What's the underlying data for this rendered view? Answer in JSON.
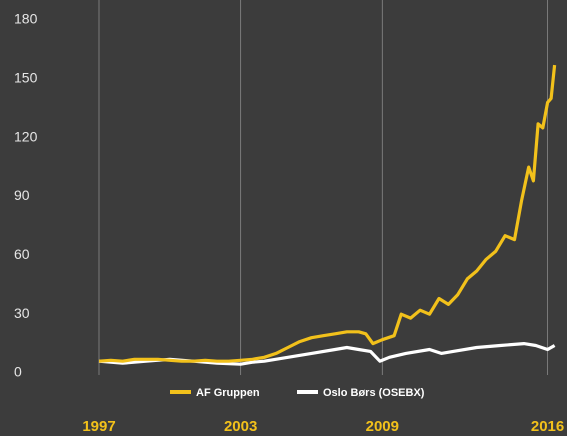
{
  "chart_data": {
    "type": "line",
    "xlim": [
      1997,
      2016.4
    ],
    "xticks": [
      1997,
      2003,
      2009,
      2016
    ],
    "ylim": [
      0,
      180
    ],
    "yticks": [
      0,
      30,
      60,
      90,
      120,
      150,
      180
    ],
    "grid": "x",
    "legend": "bottom",
    "series": [
      {
        "name": "AF Gruppen",
        "color": "#f2c11b",
        "x": [
          1997,
          1997.5,
          1998,
          1998.5,
          1999,
          1999.5,
          2000,
          2000.5,
          2001,
          2001.5,
          2002,
          2002.5,
          2003,
          2003.5,
          2004,
          2004.5,
          2005,
          2005.5,
          2006,
          2006.5,
          2007,
          2007.5,
          2008,
          2008.3,
          2008.6,
          2009,
          2009.5,
          2009.8,
          2010.2,
          2010.6,
          2011,
          2011.4,
          2011.8,
          2012.2,
          2012.6,
          2013,
          2013.4,
          2013.8,
          2014.2,
          2014.6,
          2014.9,
          2015.2,
          2015.4,
          2015.6,
          2015.8,
          2016,
          2016.15,
          2016.3
        ],
        "values": [
          6,
          6.5,
          6,
          7,
          7,
          7,
          6.5,
          6,
          6,
          6.5,
          6,
          6,
          6.5,
          7,
          8,
          10,
          13,
          16,
          18,
          19,
          20,
          21,
          21,
          20,
          15,
          17,
          19,
          30,
          28,
          32,
          30,
          38,
          35,
          40,
          48,
          52,
          58,
          62,
          70,
          68,
          88,
          105,
          98,
          127,
          125,
          138,
          140,
          157
        ]
      },
      {
        "name": "Oslo Børs (OSEBX)",
        "color": "#ffffff",
        "x": [
          1997,
          1998,
          1999,
          2000,
          2001,
          2002,
          2003,
          2003.5,
          2004,
          2005,
          2006,
          2007,
          2007.5,
          2008,
          2008.5,
          2008.9,
          2009.3,
          2010,
          2011,
          2011.5,
          2012,
          2013,
          2014,
          2015,
          2015.5,
          2016,
          2016.3
        ],
        "values": [
          6,
          5,
          6,
          7,
          6,
          5,
          4.5,
          5.5,
          6,
          8,
          10,
          12,
          13,
          12,
          11,
          6,
          8,
          10,
          12,
          10,
          11,
          13,
          14,
          15,
          14,
          12,
          14
        ]
      }
    ]
  }
}
